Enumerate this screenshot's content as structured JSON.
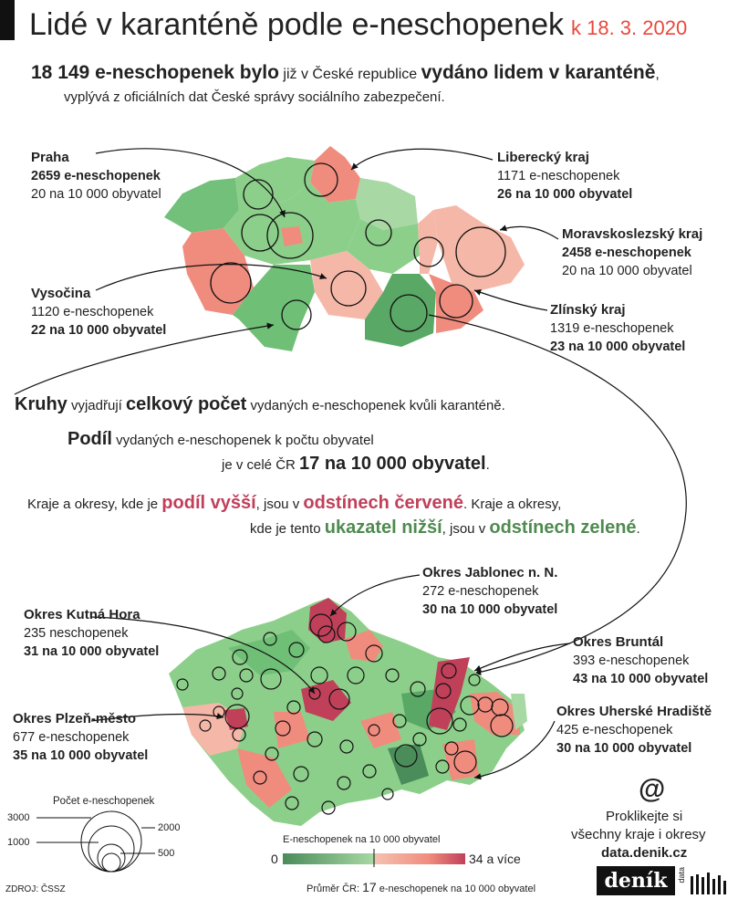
{
  "title": {
    "main": "Lidé v karanténě podle e-neschopenek",
    "date": "k 18. 3. 2020"
  },
  "lead": {
    "count": "18 149 e-neschopenek bylo",
    "mid": "již v České republice",
    "bold": "vydáno lidem v karanténě",
    "comma": ",",
    "line2": "vyplývá z oficiálních dat České správy sociálního zabezpečení."
  },
  "regions": {
    "praha": {
      "name": "Praha",
      "count": "2659 e-neschopenek",
      "rate": "20 na 10 000 obyvatel"
    },
    "liberec": {
      "name": "Liberecký kraj",
      "count": "1171 e-neschopenek",
      "rate": "26 na 10 000 obyvatel"
    },
    "moravskoslezsky": {
      "name": "Moravskoslezský kraj",
      "count": "2458 e-neschopenek",
      "rate": "20 na 10 000 obyvatel"
    },
    "vysocina": {
      "name": "Vysočina",
      "count": "1120 e-neschopenek",
      "rate": "22 na 10 000 obyvatel"
    },
    "zlin": {
      "name": "Zlínský kraj",
      "count": "1319 e-neschopenek",
      "rate": "23 na 10 000 obyvatel"
    }
  },
  "explain": {
    "k1": "Kruhy",
    "k2": "vyjadřují",
    "k3": "celkový počet",
    "k4": "vydaných e-neschopenek kvůli karanténě.",
    "p1": "Podíl",
    "p2": "vydaných e-neschopenek k počtu obyvatel",
    "p3": "je v celé ČR",
    "p4": "17 na 10 000 obyvatel",
    "p5": ".",
    "c1": "Kraje a okresy, kde je",
    "c2": "podíl vyšší",
    "c3": ", jsou v",
    "c4": "odstínech červené",
    "c5": ". Kraje a okresy,",
    "c6": "kde je tento",
    "c7": "ukazatel nižší",
    "c8": ", jsou v",
    "c9": "odstínech zelené",
    "c10": "."
  },
  "districts": {
    "jablonec": {
      "name": "Okres Jablonec n. N.",
      "count": "272 e-neschopenek",
      "rate": "30 na 10 000 obyvatel"
    },
    "kutna": {
      "name": "Okres Kutná Hora",
      "count": "235 neschopenek",
      "rate": "31 na 10 000 obyvatel"
    },
    "bruntal": {
      "name": "Okres Bruntál",
      "count": "393 e-neschopenek",
      "rate": "43 na 10 000 obyvatel"
    },
    "plzen": {
      "name": "Okres Plzeň-město",
      "count": "677 e-neschopenek",
      "rate": "35 na 10 000 obyvatel"
    },
    "uherske": {
      "name": "Okres Uherské Hradiště",
      "count": "425 e-neschopenek",
      "rate": "30 na 10 000 obyvatel"
    }
  },
  "size_legend": {
    "title": "Počet e-neschopenek",
    "values": [
      "3000",
      "2000",
      "1000",
      "500"
    ]
  },
  "color_legend": {
    "title": "E-neschopenek na 10 000 obyvatel",
    "min": "0",
    "max": "34 a více",
    "avg_label": "Průměr ČR:",
    "avg_value": "17",
    "avg_unit": "e-neschopenek na 10 000 obyvatel"
  },
  "cta": {
    "at": "@",
    "line1": "Proklikejte si",
    "line2": "všechny kraje i okresy",
    "url": "data.denik.cz"
  },
  "source": "ZDROJ: ČSSZ",
  "logo": {
    "text": "deník",
    "sub": "data"
  },
  "colors": {
    "red_high": "#c0405a",
    "red_mid": "#f08c7e",
    "red_low": "#f5b8a8",
    "green_low": "#a8d8a4",
    "green_mid": "#6fbf76",
    "green_high": "#4a8c5a",
    "accent": "#e8483d"
  }
}
